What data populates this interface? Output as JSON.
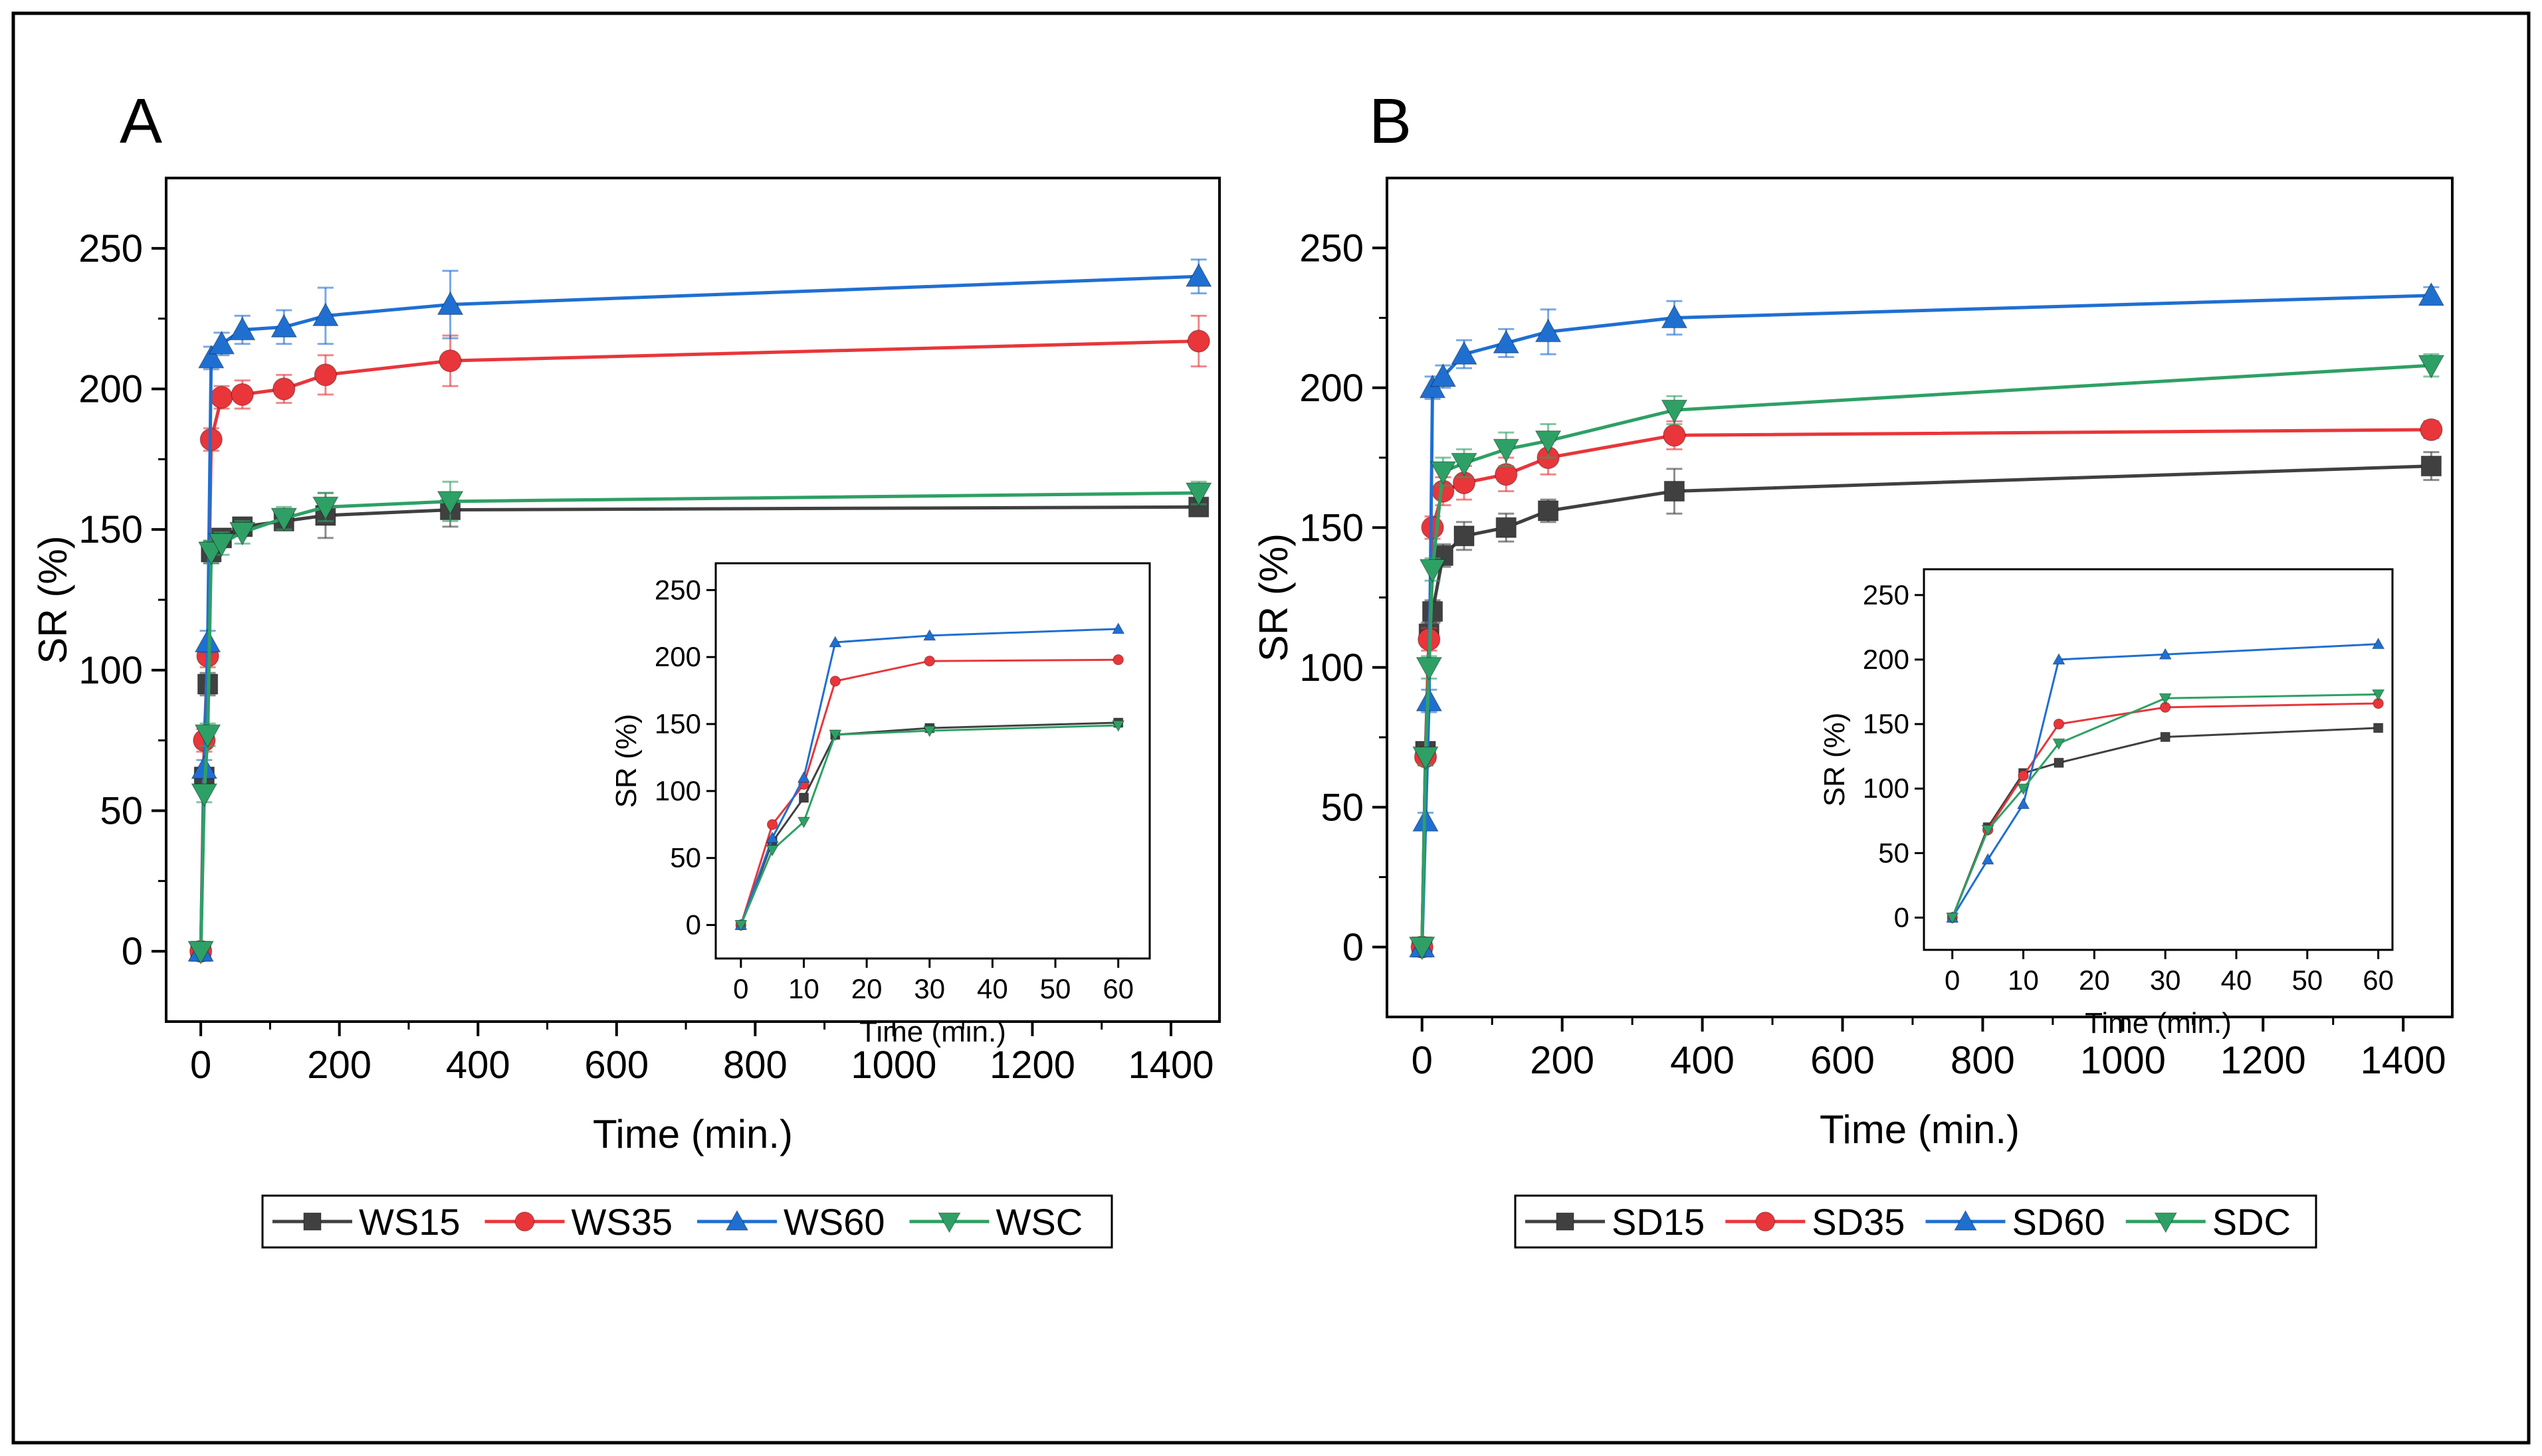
{
  "chart_data": [
    {
      "type": "line",
      "panel_label": "A",
      "xlabel": "Time (min.)",
      "ylabel": "SR (%)",
      "xlim": [
        -50,
        1470
      ],
      "ylim": [
        -25,
        275
      ],
      "xticks": [
        0,
        200,
        400,
        600,
        800,
        1000,
        1200,
        1400
      ],
      "yticks": [
        0,
        50,
        100,
        150,
        200,
        250
      ],
      "legend_position": "bottom-center",
      "x": [
        0,
        5,
        10,
        15,
        30,
        60,
        120,
        180,
        360,
        1440
      ],
      "series": [
        {
          "name": "WS15",
          "color": "#404040",
          "marker": "square",
          "values": [
            0,
            62,
            95,
            142,
            147,
            151,
            153,
            155,
            157,
            158
          ],
          "errors": [
            0,
            3,
            4,
            4,
            3,
            3,
            3,
            8,
            6,
            3
          ]
        },
        {
          "name": "WS35",
          "color": "#e8363a",
          "marker": "circle",
          "values": [
            0,
            75,
            105,
            182,
            197,
            198,
            200,
            205,
            210,
            217
          ],
          "errors": [
            0,
            4,
            4,
            4,
            4,
            5,
            5,
            7,
            9,
            9
          ]
        },
        {
          "name": "WS60",
          "color": "#1f6fd1",
          "marker": "triangle-up",
          "values": [
            0,
            65,
            110,
            211,
            216,
            221,
            222,
            226,
            230,
            240
          ],
          "errors": [
            0,
            3,
            4,
            4,
            4,
            5,
            6,
            10,
            12,
            6
          ]
        },
        {
          "name": "WSC",
          "color": "#2ea065",
          "marker": "triangle-down",
          "values": [
            0,
            56,
            77,
            142,
            145,
            149,
            154,
            158,
            160,
            163
          ],
          "errors": [
            0,
            3,
            4,
            4,
            4,
            4,
            4,
            5,
            7,
            4
          ]
        }
      ],
      "inset": {
        "xlabel": "Time (min.)",
        "ylabel": "SR (%)",
        "xlim": [
          -4,
          65
        ],
        "ylim": [
          -25,
          270
        ],
        "xticks": [
          0,
          10,
          20,
          30,
          40,
          50,
          60
        ],
        "yticks": [
          0,
          50,
          100,
          150,
          200,
          250
        ],
        "x": [
          0,
          5,
          10,
          15,
          30,
          60
        ],
        "series": [
          {
            "name": "WS15",
            "values": [
              0,
              62,
              95,
              142,
              147,
              151
            ]
          },
          {
            "name": "WS35",
            "values": [
              0,
              75,
              105,
              182,
              197,
              198
            ]
          },
          {
            "name": "WS60",
            "values": [
              0,
              65,
              110,
              211,
              216,
              221
            ]
          },
          {
            "name": "WSC",
            "values": [
              0,
              56,
              77,
              142,
              145,
              149
            ]
          }
        ]
      }
    },
    {
      "type": "line",
      "panel_label": "B",
      "xlabel": "Time (min.)",
      "ylabel": "SR (%)",
      "xlim": [
        -50,
        1470
      ],
      "ylim": [
        -25,
        275
      ],
      "xticks": [
        0,
        200,
        400,
        600,
        800,
        1000,
        1200,
        1400
      ],
      "yticks": [
        0,
        50,
        100,
        150,
        200,
        250
      ],
      "legend_position": "bottom-center",
      "x": [
        0,
        5,
        10,
        15,
        30,
        60,
        120,
        180,
        360,
        1440
      ],
      "series": [
        {
          "name": "SD15",
          "color": "#404040",
          "marker": "square",
          "values": [
            0,
            70,
            112,
            120,
            140,
            147,
            150,
            156,
            163,
            172
          ],
          "errors": [
            0,
            3,
            4,
            4,
            4,
            5,
            5,
            4,
            8,
            5
          ]
        },
        {
          "name": "SD35",
          "color": "#e8363a",
          "marker": "circle",
          "values": [
            0,
            68,
            110,
            150,
            163,
            166,
            169,
            175,
            183,
            185
          ],
          "errors": [
            0,
            3,
            4,
            4,
            5,
            6,
            6,
            6,
            5,
            3
          ]
        },
        {
          "name": "SD60",
          "color": "#1f6fd1",
          "marker": "triangle-up",
          "values": [
            0,
            45,
            88,
            200,
            204,
            212,
            216,
            220,
            225,
            233
          ],
          "errors": [
            0,
            3,
            4,
            4,
            4,
            5,
            5,
            8,
            6,
            3
          ]
        },
        {
          "name": "SDC",
          "color": "#2ea065",
          "marker": "triangle-down",
          "values": [
            0,
            68,
            100,
            135,
            170,
            173,
            178,
            181,
            192,
            208
          ],
          "errors": [
            0,
            3,
            4,
            4,
            5,
            5,
            6,
            6,
            5,
            4
          ]
        }
      ],
      "inset": {
        "xlabel": "Time (min.)",
        "ylabel": "SR (%)",
        "xlim": [
          -4,
          62
        ],
        "ylim": [
          -25,
          270
        ],
        "xticks": [
          0,
          10,
          20,
          30,
          40,
          50,
          60
        ],
        "yticks": [
          0,
          50,
          100,
          150,
          200,
          250
        ],
        "x": [
          0,
          5,
          10,
          15,
          30,
          60
        ],
        "series": [
          {
            "name": "SD15",
            "values": [
              0,
              70,
              112,
              120,
              140,
              147
            ]
          },
          {
            "name": "SD35",
            "values": [
              0,
              68,
              110,
              150,
              163,
              166
            ]
          },
          {
            "name": "SD60",
            "values": [
              0,
              45,
              88,
              200,
              204,
              212
            ]
          },
          {
            "name": "SDC",
            "values": [
              0,
              68,
              100,
              135,
              170,
              173
            ]
          }
        ]
      }
    }
  ]
}
